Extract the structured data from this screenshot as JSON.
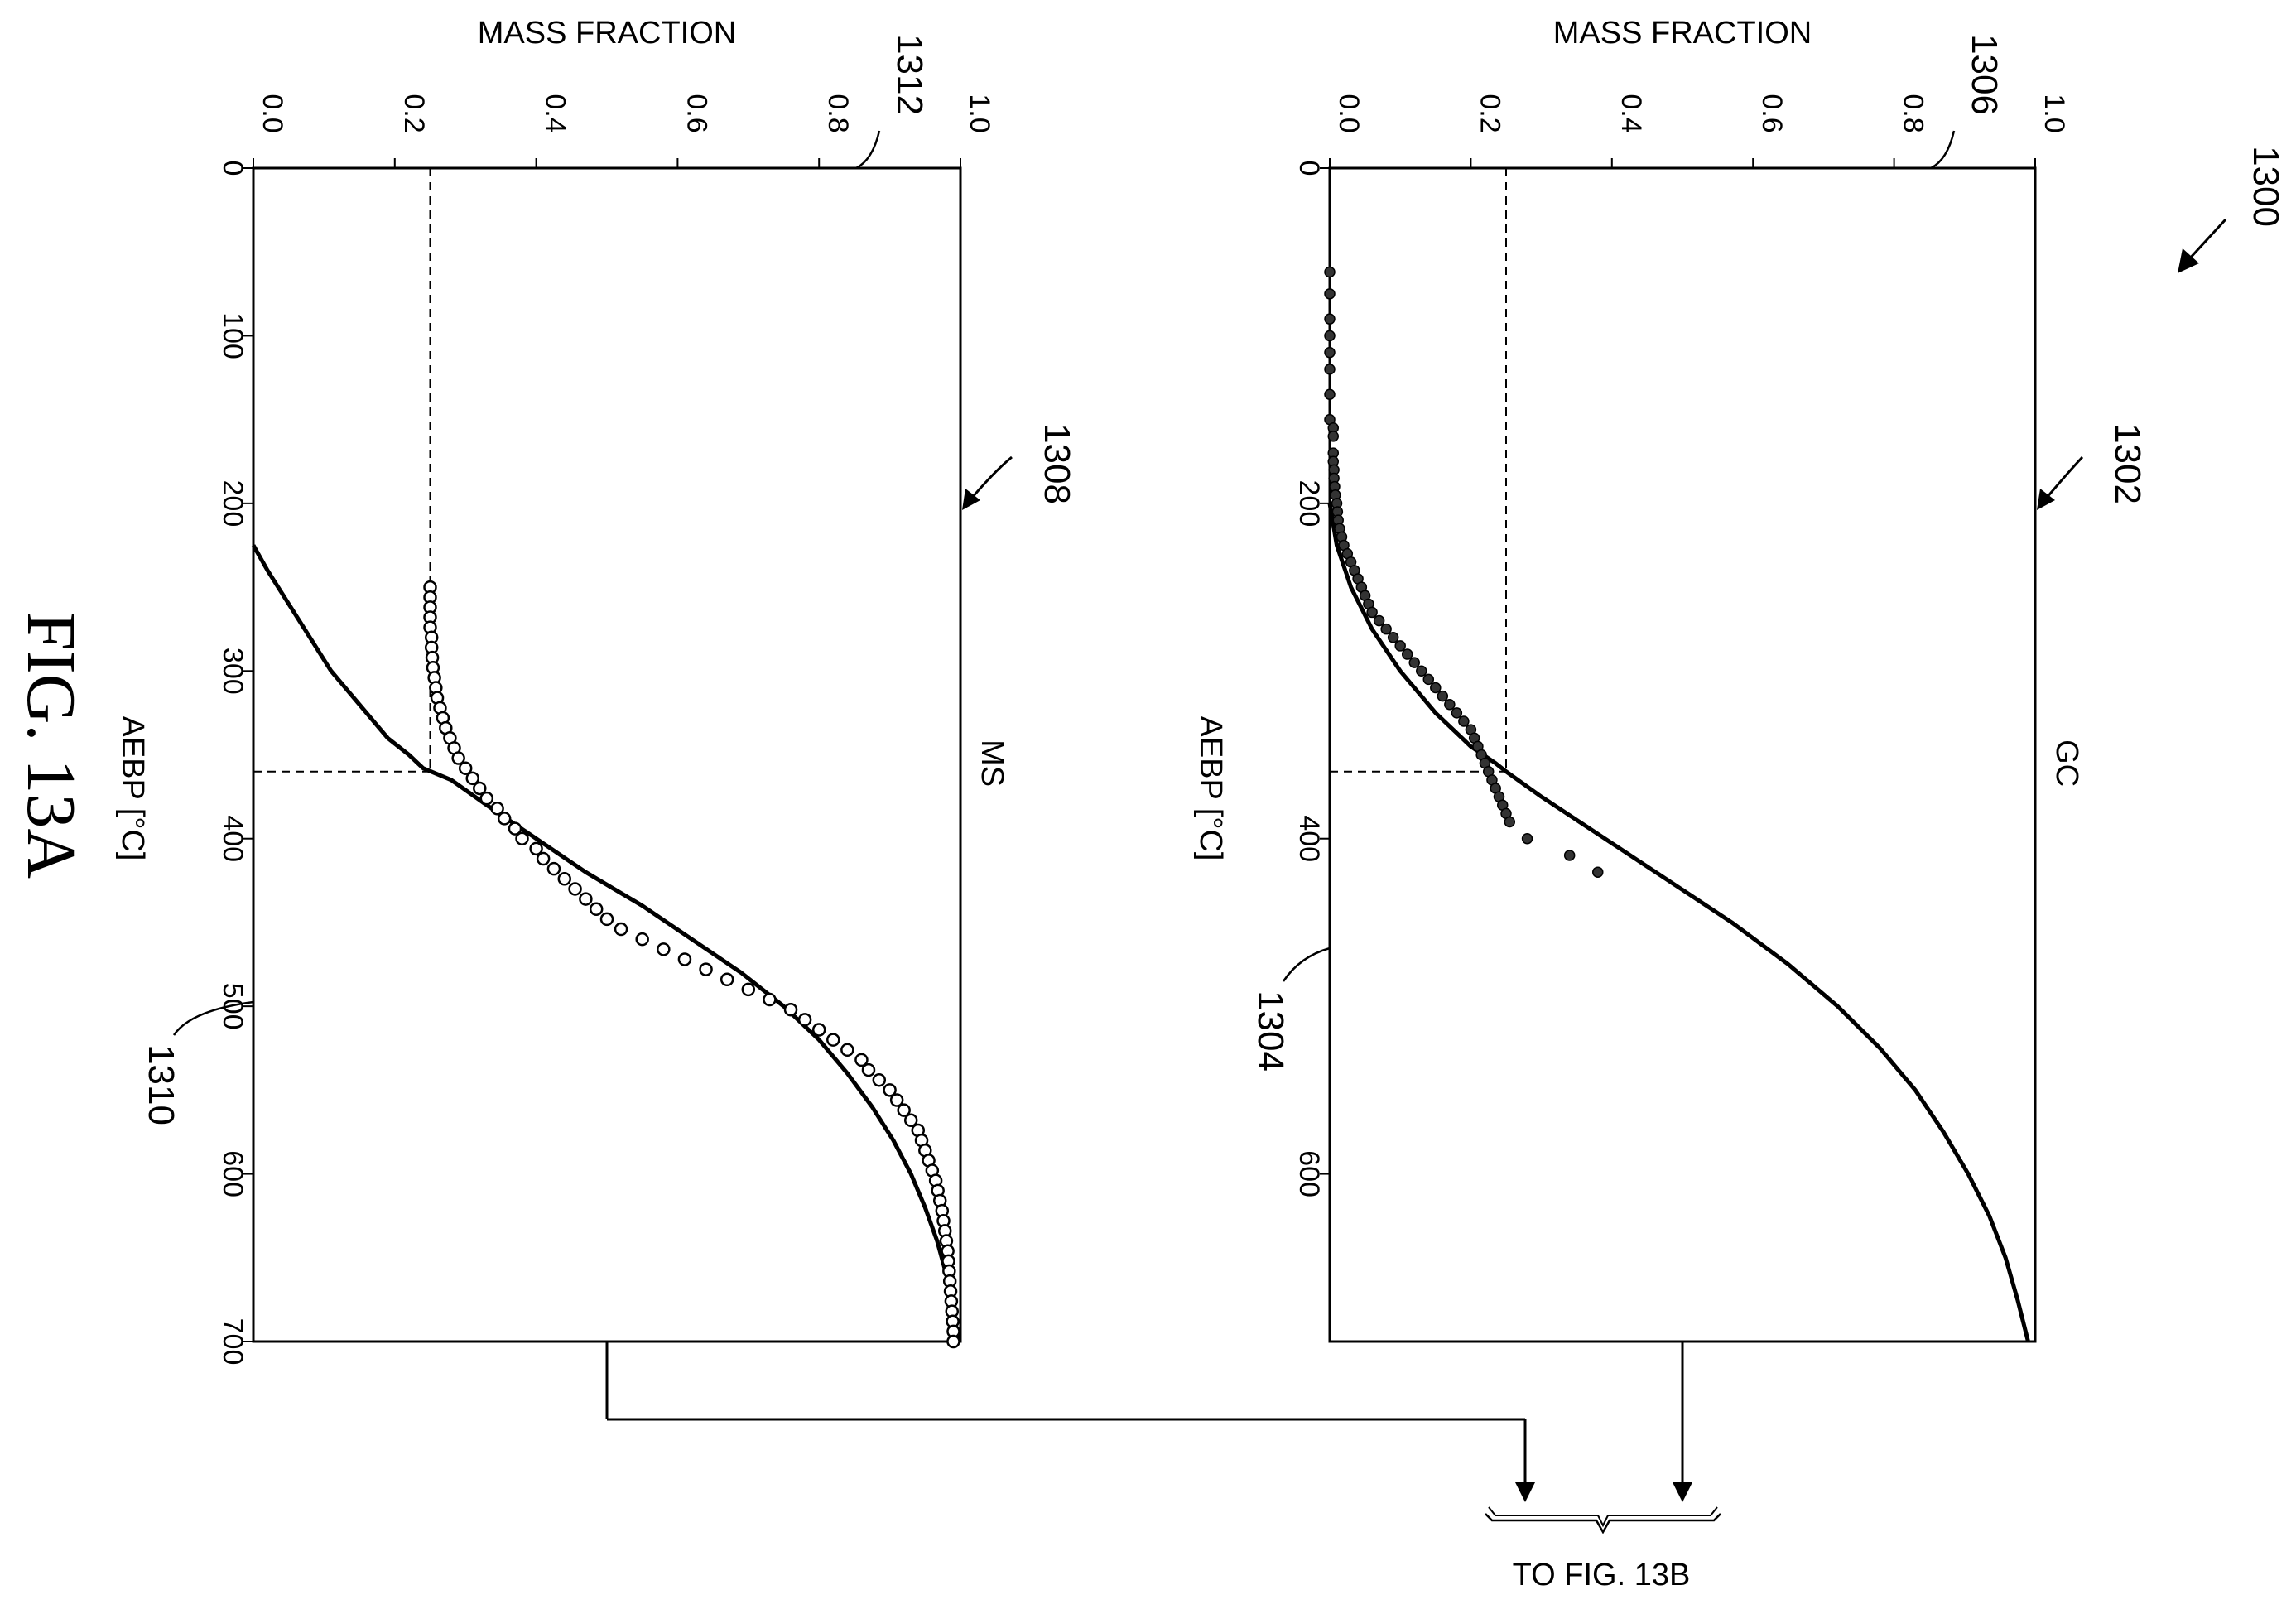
{
  "figure": {
    "title": "FIG. 13A",
    "ref_number": "1300",
    "continuation_label": "TO FIG. 13B"
  },
  "chart_data": [
    {
      "type": "line",
      "panel_label": "GC",
      "title": "",
      "xlabel": "AEBP [°C]",
      "ylabel": "MASS FRACTION",
      "xlim": [
        0,
        700
      ],
      "ylim": [
        0.0,
        1.0
      ],
      "x_ticks": [
        "0",
        "200",
        "400",
        "600"
      ],
      "y_ticks": [
        "0.0",
        "0.2",
        "0.4",
        "0.6",
        "0.8",
        "1.0"
      ],
      "ref_numbers": {
        "plot": "1302",
        "curve": "1304",
        "axis": "1306"
      },
      "cutoff": {
        "x": 360,
        "y": 0.25
      },
      "series": [
        {
          "style": "solid-line",
          "x": [
            200,
            225,
            250,
            275,
            300,
            325,
            345,
            355,
            360,
            375,
            400,
            425,
            450,
            475,
            500,
            525,
            550,
            575,
            600,
            625,
            650,
            675,
            700
          ],
          "y": [
            0.0,
            0.01,
            0.03,
            0.06,
            0.1,
            0.15,
            0.2,
            0.235,
            0.25,
            0.3,
            0.39,
            0.48,
            0.57,
            0.65,
            0.72,
            0.78,
            0.83,
            0.87,
            0.905,
            0.935,
            0.958,
            0.975,
            0.99
          ]
        },
        {
          "style": "filled-markers",
          "x": [
            62,
            75,
            90,
            100,
            110,
            120,
            135,
            150,
            155,
            160,
            170,
            175,
            180,
            185,
            190,
            195,
            200,
            205,
            210,
            215,
            220,
            225,
            230,
            235,
            240,
            245,
            250,
            255,
            260,
            265,
            270,
            275,
            280,
            285,
            290,
            295,
            300,
            305,
            310,
            315,
            320,
            325,
            330,
            335,
            340,
            345,
            350,
            355,
            360,
            365,
            370,
            375,
            380,
            385,
            390,
            400,
            410,
            420
          ],
          "y": [
            0.0,
            0.0,
            0.0,
            0.0,
            0.0,
            0.0,
            0.0,
            0.0,
            0.005,
            0.005,
            0.005,
            0.005,
            0.006,
            0.006,
            0.007,
            0.008,
            0.01,
            0.011,
            0.012,
            0.014,
            0.017,
            0.02,
            0.025,
            0.03,
            0.035,
            0.04,
            0.045,
            0.05,
            0.055,
            0.06,
            0.07,
            0.08,
            0.09,
            0.1,
            0.11,
            0.12,
            0.13,
            0.14,
            0.15,
            0.16,
            0.17,
            0.18,
            0.19,
            0.2,
            0.205,
            0.21,
            0.215,
            0.22,
            0.225,
            0.23,
            0.235,
            0.24,
            0.245,
            0.25,
            0.255,
            0.28,
            0.34,
            0.38
          ]
        }
      ]
    },
    {
      "type": "line",
      "panel_label": "MS",
      "title": "",
      "xlabel": "AEBP [°C]",
      "ylabel": "MASS FRACTION",
      "xlim": [
        0,
        700
      ],
      "ylim": [
        0.0,
        1.0
      ],
      "x_ticks": [
        "0",
        "100",
        "200",
        "300",
        "400",
        "500",
        "600",
        "700"
      ],
      "y_ticks": [
        "0.0",
        "0.2",
        "0.4",
        "0.6",
        "0.8",
        "1.0"
      ],
      "ref_numbers": {
        "plot": "1308",
        "curve": "1310",
        "axis": "1312"
      },
      "cutoff": {
        "x": 360,
        "y": 0.25
      },
      "series": [
        {
          "style": "solid-line",
          "x": [
            225,
            240,
            260,
            280,
            300,
            320,
            340,
            350,
            358,
            365,
            380,
            400,
            420,
            440,
            460,
            480,
            500,
            520,
            540,
            560,
            580,
            600,
            620,
            640,
            660,
            680,
            700
          ],
          "y": [
            0.0,
            0.02,
            0.05,
            0.08,
            0.11,
            0.15,
            0.19,
            0.22,
            0.24,
            0.28,
            0.33,
            0.4,
            0.47,
            0.55,
            0.62,
            0.69,
            0.75,
            0.8,
            0.84,
            0.875,
            0.905,
            0.93,
            0.95,
            0.967,
            0.98,
            0.99,
            0.997
          ]
        },
        {
          "style": "open-markers",
          "x": [
            250,
            256,
            262,
            268,
            274,
            280,
            286,
            292,
            298,
            304,
            310,
            316,
            322,
            328,
            334,
            340,
            346,
            352,
            358,
            364,
            370,
            376,
            382,
            388,
            394,
            400,
            406,
            412,
            418,
            424,
            430,
            436,
            442,
            448,
            454,
            460,
            466,
            472,
            478,
            484,
            490,
            496,
            502,
            508,
            514,
            520,
            526,
            532,
            538,
            544,
            550,
            556,
            562,
            568,
            574,
            580,
            586,
            592,
            598,
            604,
            610,
            616,
            622,
            628,
            634,
            640,
            646,
            652,
            658,
            664,
            670,
            676,
            682,
            688,
            694,
            700
          ],
          "y": [
            0.25,
            0.25,
            0.25,
            0.25,
            0.25,
            0.252,
            0.252,
            0.253,
            0.254,
            0.256,
            0.258,
            0.26,
            0.264,
            0.268,
            0.272,
            0.278,
            0.284,
            0.29,
            0.3,
            0.31,
            0.32,
            0.33,
            0.345,
            0.355,
            0.37,
            0.38,
            0.4,
            0.41,
            0.425,
            0.44,
            0.455,
            0.47,
            0.485,
            0.5,
            0.52,
            0.55,
            0.58,
            0.61,
            0.64,
            0.67,
            0.7,
            0.73,
            0.76,
            0.78,
            0.8,
            0.82,
            0.84,
            0.86,
            0.87,
            0.885,
            0.9,
            0.91,
            0.92,
            0.93,
            0.94,
            0.945,
            0.95,
            0.955,
            0.96,
            0.965,
            0.968,
            0.971,
            0.974,
            0.976,
            0.978,
            0.98,
            0.982,
            0.983,
            0.984,
            0.985,
            0.986,
            0.987,
            0.988,
            0.989,
            0.99,
            0.99
          ]
        }
      ]
    }
  ]
}
